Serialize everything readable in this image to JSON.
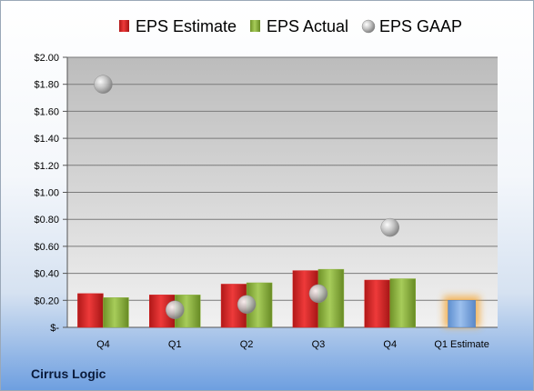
{
  "company": "Cirrus Logic",
  "chart_data": {
    "type": "bar",
    "title": "",
    "xlabel": "",
    "ylabel": "",
    "categories": [
      "Q4",
      "Q1",
      "Q2",
      "Q3",
      "Q4",
      "Q1 Estimate"
    ],
    "y_ticks": [
      "$-",
      "$0.20",
      "$0.40",
      "$0.60",
      "$0.80",
      "$1.00",
      "$1.20",
      "$1.40",
      "$1.60",
      "$1.80",
      "$2.00"
    ],
    "ylim": [
      0,
      2.0
    ],
    "grid": true,
    "legend_position": "top",
    "series": [
      {
        "name": "EPS Estimate",
        "kind": "bar",
        "color": "#d62020",
        "values": [
          0.25,
          0.24,
          0.32,
          0.42,
          0.35,
          null
        ]
      },
      {
        "name": "EPS Actual",
        "kind": "bar",
        "color": "#8db33f",
        "values": [
          0.22,
          0.24,
          0.33,
          0.43,
          0.36,
          null
        ]
      },
      {
        "name": "EPS GAAP",
        "kind": "scatter",
        "color": "#a8a8a8",
        "values": [
          1.8,
          0.13,
          0.17,
          0.25,
          0.74,
          null
        ]
      }
    ],
    "estimate_bar": {
      "category_index": 5,
      "value": 0.2,
      "color": "#7fa9e0",
      "glow_color": "#f5a531"
    }
  }
}
